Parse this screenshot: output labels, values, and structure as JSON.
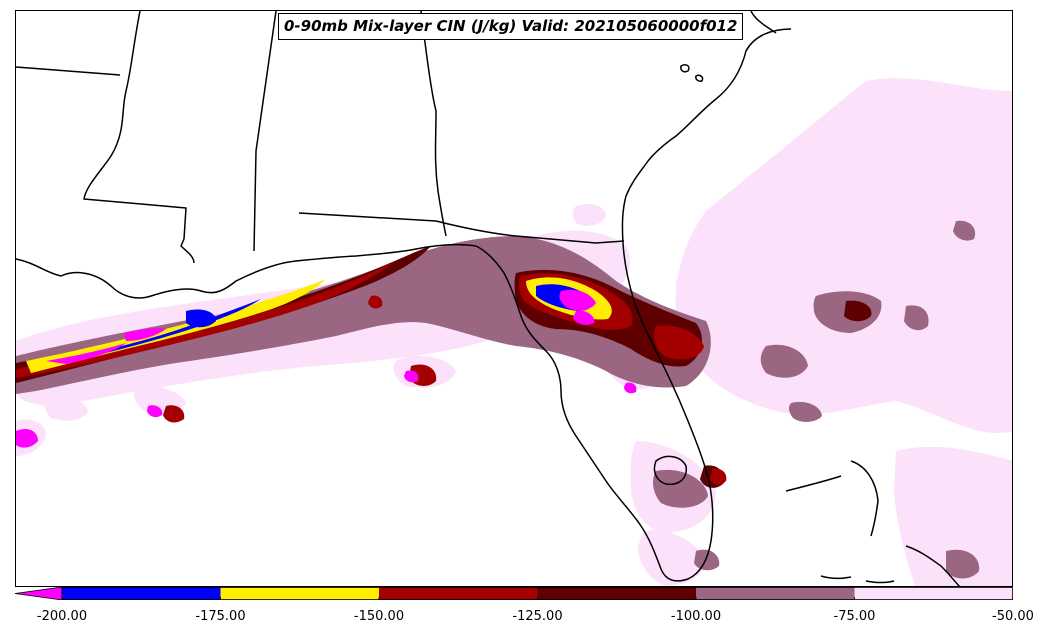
{
  "title": "0-90mb Mix-layer CIN (J/kg) Valid: 202105060000f012",
  "colorbar": {
    "tick_labels": [
      "-200.00",
      "-175.00",
      "-150.00",
      "-125.00",
      "-100.00",
      "-75.00",
      "-50.00"
    ],
    "levels": [
      -200,
      -175,
      -150,
      -125,
      -100,
      -75,
      -50
    ],
    "colors": [
      "#ff00ff",
      "#0000ff",
      "#ffee00",
      "#a50000",
      "#5e0000",
      "#9a6682",
      "#fbe2fa"
    ],
    "extend": "min"
  }
}
